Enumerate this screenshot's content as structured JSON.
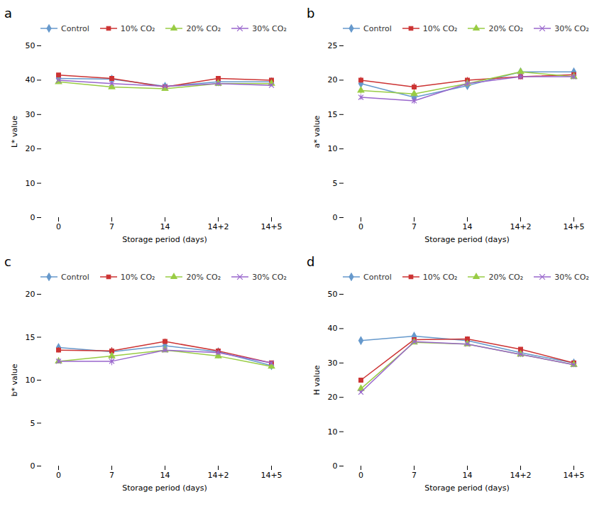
{
  "chart_data": [
    {
      "type": "line",
      "title": "a",
      "categories": [
        "0",
        "7",
        "14",
        "14+2",
        "14+5"
      ],
      "xlabel": "Storage period (days)",
      "ylabel": "L* value",
      "ylim": [
        0,
        50
      ],
      "yticks": [
        0,
        10,
        20,
        30,
        40,
        50
      ],
      "grid": false,
      "legend": "top",
      "series": [
        {
          "name": "Control",
          "color": "#6699CC",
          "marker": "diamond",
          "values": [
            40.5,
            40.3,
            38.2,
            39.5,
            39.5
          ],
          "errors": [
            0.3,
            0.4,
            0.5,
            0.3,
            0.4
          ]
        },
        {
          "name": "10% CO₂",
          "color": "#CC3333",
          "marker": "square",
          "values": [
            41.5,
            40.5,
            38.0,
            40.5,
            40.0
          ],
          "errors": [
            0.3,
            0.4,
            0.5,
            0.3,
            0.4
          ]
        },
        {
          "name": "20% CO₂",
          "color": "#99CC44",
          "marker": "triangle",
          "values": [
            39.5,
            38.0,
            37.5,
            39.0,
            39.0
          ],
          "errors": [
            0.4,
            0.5,
            0.4,
            0.3,
            0.4
          ]
        },
        {
          "name": "30% CO₂",
          "color": "#9966CC",
          "marker": "times",
          "values": [
            40.0,
            39.0,
            38.2,
            39.0,
            38.5
          ],
          "errors": [
            0.3,
            0.4,
            0.3,
            0.4,
            0.3
          ]
        }
      ]
    },
    {
      "type": "line",
      "title": "b",
      "categories": [
        "0",
        "7",
        "14",
        "14+2",
        "14+5"
      ],
      "xlabel": "Storage period (days)",
      "ylabel": "a* value",
      "ylim": [
        0,
        25
      ],
      "yticks": [
        0,
        5,
        10,
        15,
        20,
        25
      ],
      "grid": false,
      "legend": "top",
      "series": [
        {
          "name": "Control",
          "color": "#6699CC",
          "marker": "diamond",
          "values": [
            19.5,
            17.5,
            19.2,
            21.2,
            21.2
          ],
          "errors": [
            0.5,
            0.5,
            0.4,
            0.4,
            0.4
          ]
        },
        {
          "name": "10% CO₂",
          "color": "#CC3333",
          "marker": "square",
          "values": [
            20.0,
            19.0,
            20.0,
            20.5,
            20.8
          ],
          "errors": [
            0.4,
            0.5,
            0.4,
            0.4,
            0.3
          ]
        },
        {
          "name": "20% CO₂",
          "color": "#99CC44",
          "marker": "triangle",
          "values": [
            18.5,
            18.0,
            19.5,
            21.2,
            20.5
          ],
          "errors": [
            0.5,
            0.4,
            0.5,
            0.4,
            0.4
          ]
        },
        {
          "name": "30% CO₂",
          "color": "#9966CC",
          "marker": "times",
          "values": [
            17.5,
            17.0,
            19.5,
            20.5,
            20.5
          ],
          "errors": [
            0.4,
            0.5,
            0.4,
            0.4,
            0.4
          ]
        }
      ]
    },
    {
      "type": "line",
      "title": "c",
      "categories": [
        "0",
        "7",
        "14",
        "14+2",
        "14+5"
      ],
      "xlabel": "Storage period (days)",
      "ylabel": "b* value",
      "ylim": [
        0,
        20
      ],
      "yticks": [
        0,
        5,
        10,
        15,
        20
      ],
      "grid": false,
      "legend": "top",
      "series": [
        {
          "name": "Control",
          "color": "#6699CC",
          "marker": "diamond",
          "values": [
            13.8,
            13.3,
            14.0,
            13.3,
            11.7
          ],
          "errors": [
            0.3,
            0.3,
            0.3,
            0.3,
            0.2
          ]
        },
        {
          "name": "10% CO₂",
          "color": "#CC3333",
          "marker": "square",
          "values": [
            13.5,
            13.4,
            14.5,
            13.4,
            12.0
          ],
          "errors": [
            0.3,
            0.4,
            0.3,
            0.3,
            0.2
          ]
        },
        {
          "name": "20% CO₂",
          "color": "#99CC44",
          "marker": "triangle",
          "values": [
            12.2,
            12.8,
            13.5,
            12.8,
            11.6
          ],
          "errors": [
            0.3,
            0.4,
            0.3,
            0.3,
            0.2
          ]
        },
        {
          "name": "30% CO₂",
          "color": "#9966CC",
          "marker": "times",
          "values": [
            12.2,
            12.2,
            13.5,
            13.2,
            12.0
          ],
          "errors": [
            0.3,
            0.5,
            0.3,
            0.3,
            0.2
          ]
        }
      ]
    },
    {
      "type": "line",
      "title": "d",
      "categories": [
        "0",
        "7",
        "14",
        "14+2",
        "14+5"
      ],
      "xlabel": "Storage period (days)",
      "ylabel": "H value",
      "ylim": [
        0,
        50
      ],
      "yticks": [
        0,
        10,
        20,
        30,
        40,
        50
      ],
      "grid": false,
      "legend": "top",
      "series": [
        {
          "name": "Control",
          "color": "#6699CC",
          "marker": "diamond",
          "values": [
            36.5,
            37.8,
            36.5,
            33.0,
            30.0
          ],
          "errors": [
            0.4,
            0.4,
            0.3,
            0.4,
            0.3
          ]
        },
        {
          "name": "10% CO₂",
          "color": "#CC3333",
          "marker": "square",
          "values": [
            25.0,
            36.8,
            37.0,
            34.0,
            30.0
          ],
          "errors": [
            0.4,
            0.3,
            0.4,
            0.3,
            0.3
          ]
        },
        {
          "name": "20% CO₂",
          "color": "#99CC44",
          "marker": "triangle",
          "values": [
            22.5,
            36.0,
            35.5,
            32.5,
            29.5
          ],
          "errors": [
            0.4,
            0.3,
            0.3,
            0.3,
            0.3
          ]
        },
        {
          "name": "30% CO₂",
          "color": "#9966CC",
          "marker": "times",
          "values": [
            21.5,
            36.2,
            35.5,
            32.5,
            29.5
          ],
          "errors": [
            0.4,
            0.3,
            0.3,
            0.3,
            0.3
          ]
        }
      ]
    }
  ]
}
